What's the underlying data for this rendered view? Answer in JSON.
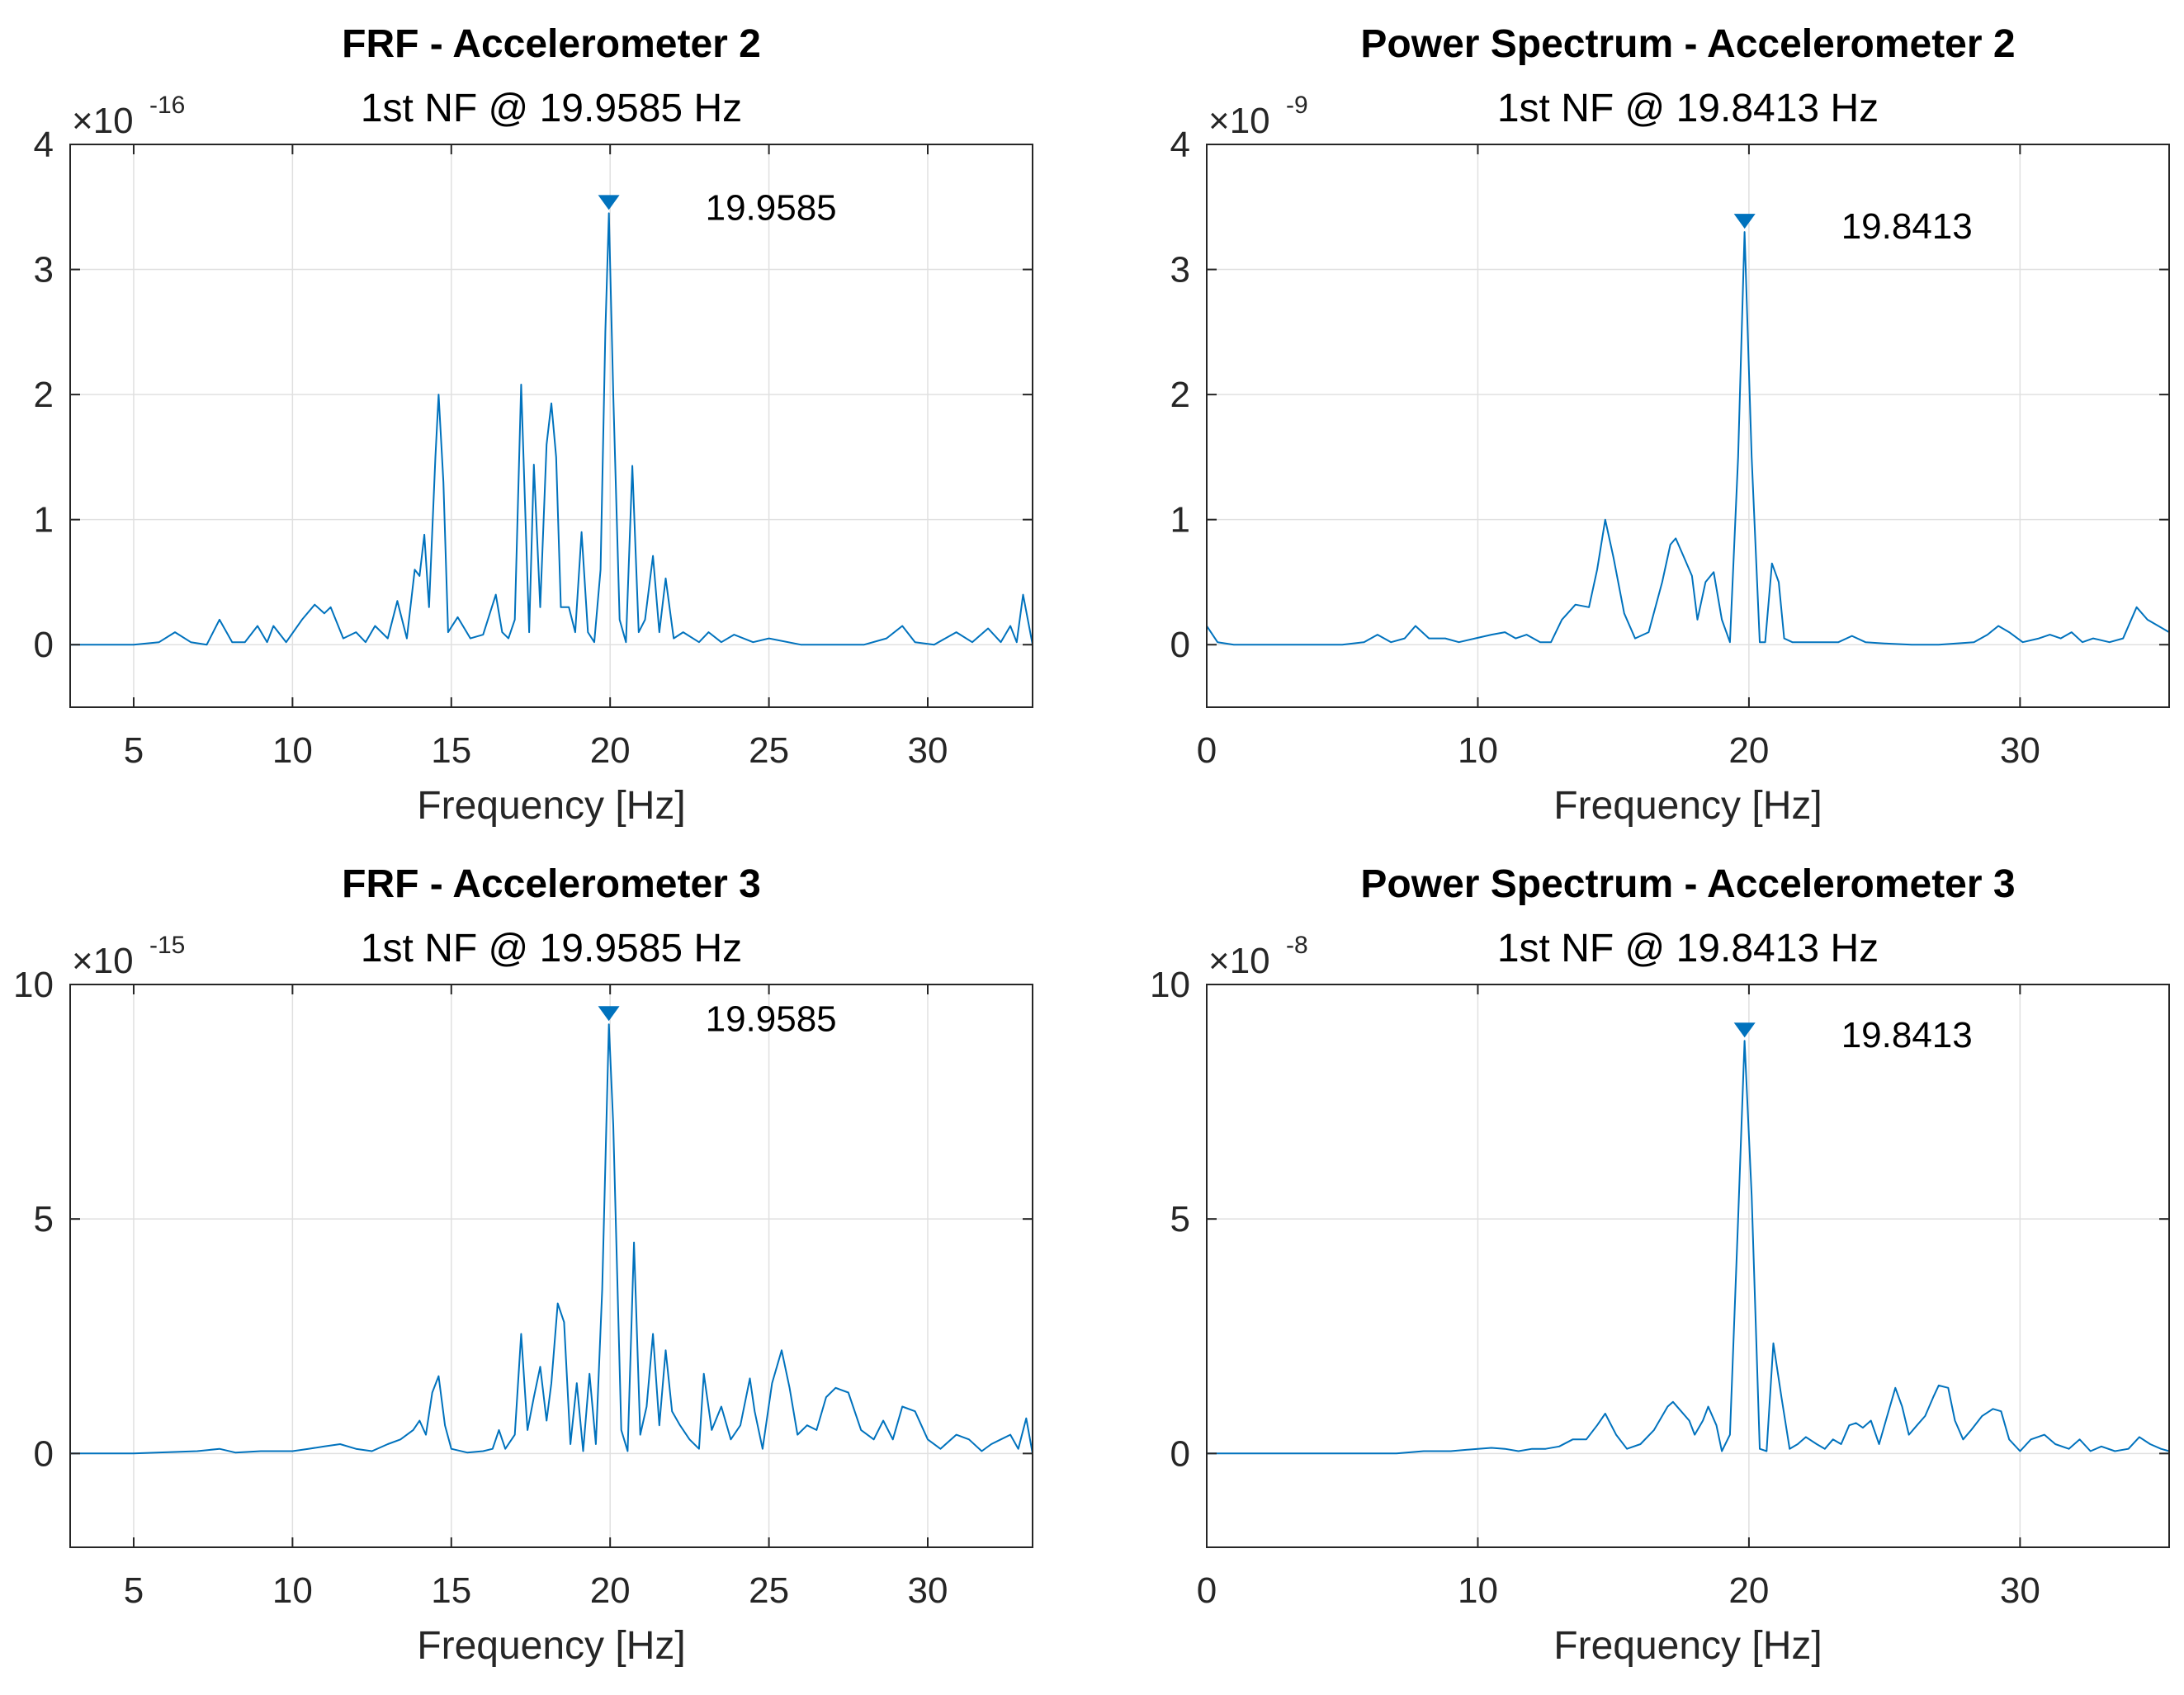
{
  "figure": {
    "background": "#ffffff",
    "line_color": "#0072bd",
    "grid_color": "#e0e0e0",
    "axis_color": "#262626"
  },
  "chart_data": [
    {
      "type": "line",
      "title": "FRF - Accelerometer 2",
      "subtitle": "1st NF @ 19.9585 Hz",
      "xlabel": "Frequency [Hz]",
      "ylabel": "",
      "xlim": [
        3,
        33.3
      ],
      "ylim": [
        -0.5,
        4
      ],
      "exponent_label": "×10",
      "exponent": "-16",
      "xticks": [
        5,
        10,
        15,
        20,
        25,
        30
      ],
      "yticks": [
        0,
        1,
        2,
        3,
        4
      ],
      "grid": true,
      "peak": {
        "x": 19.9585,
        "y": 3.45,
        "label": "19.9585"
      },
      "series": [
        {
          "name": "FRF",
          "x": [
            3,
            4,
            5,
            5.8,
            6.3,
            6.8,
            7.3,
            7.7,
            8.1,
            8.5,
            8.9,
            9.2,
            9.4,
            9.8,
            10.3,
            10.7,
            11.0,
            11.2,
            11.6,
            12.0,
            12.3,
            12.6,
            13.0,
            13.3,
            13.6,
            13.85,
            14.0,
            14.15,
            14.3,
            14.5,
            14.6,
            14.75,
            14.9,
            15.2,
            15.6,
            16.0,
            16.4,
            16.6,
            16.8,
            17.0,
            17.2,
            17.45,
            17.6,
            17.8,
            18.0,
            18.15,
            18.3,
            18.45,
            18.7,
            18.9,
            19.1,
            19.3,
            19.5,
            19.7,
            19.85,
            19.96,
            20.1,
            20.3,
            20.5,
            20.7,
            20.9,
            21.1,
            21.35,
            21.55,
            21.75,
            22.0,
            22.3,
            22.8,
            23.1,
            23.5,
            23.9,
            24.5,
            25.0,
            26.0,
            27.0,
            28.0,
            28.7,
            29.2,
            29.6,
            30.2,
            30.9,
            31.4,
            31.9,
            32.3,
            32.6,
            32.8,
            33.0,
            33.3
          ],
          "values": [
            0.0,
            0.0,
            0.0,
            0.02,
            0.1,
            0.02,
            0.0,
            0.2,
            0.02,
            0.02,
            0.15,
            0.02,
            0.15,
            0.02,
            0.2,
            0.32,
            0.25,
            0.3,
            0.05,
            0.1,
            0.02,
            0.15,
            0.05,
            0.35,
            0.05,
            0.6,
            0.55,
            0.88,
            0.3,
            1.5,
            2.0,
            1.3,
            0.1,
            0.22,
            0.05,
            0.08,
            0.4,
            0.1,
            0.05,
            0.2,
            2.08,
            0.1,
            1.44,
            0.3,
            1.6,
            1.93,
            1.5,
            0.3,
            0.3,
            0.1,
            0.9,
            0.1,
            0.02,
            0.6,
            2.5,
            3.45,
            2.0,
            0.2,
            0.02,
            1.43,
            0.1,
            0.2,
            0.71,
            0.1,
            0.53,
            0.05,
            0.1,
            0.02,
            0.1,
            0.02,
            0.08,
            0.02,
            0.05,
            0.0,
            0.0,
            0.0,
            0.05,
            0.15,
            0.02,
            0.0,
            0.1,
            0.02,
            0.13,
            0.02,
            0.15,
            0.02,
            0.4,
            0.0
          ]
        }
      ]
    },
    {
      "type": "line",
      "title": "Power Spectrum - Accelerometer 2",
      "subtitle": "1st NF @ 19.8413 Hz",
      "xlabel": "Frequency [Hz]",
      "ylabel": "",
      "xlim": [
        0,
        35.5
      ],
      "ylim": [
        -0.5,
        4
      ],
      "exponent_label": "×10",
      "exponent": "-9",
      "xticks": [
        0,
        10,
        20,
        30
      ],
      "yticks": [
        0,
        1,
        2,
        3,
        4
      ],
      "grid": true,
      "peak": {
        "x": 19.8413,
        "y": 3.3,
        "label": "19.8413"
      },
      "series": [
        {
          "name": "Power Spectrum",
          "x": [
            0,
            0.4,
            1,
            2,
            3,
            4,
            5,
            5.8,
            6.3,
            6.8,
            7.3,
            7.7,
            8.2,
            8.8,
            9.3,
            9.9,
            10.5,
            11.0,
            11.4,
            11.8,
            12.3,
            12.7,
            13.1,
            13.6,
            14.1,
            14.4,
            14.7,
            15.0,
            15.4,
            15.8,
            16.3,
            16.8,
            17.1,
            17.3,
            17.6,
            17.9,
            18.1,
            18.4,
            18.7,
            19.0,
            19.3,
            19.6,
            19.84,
            20.1,
            20.4,
            20.6,
            20.85,
            21.1,
            21.3,
            21.6,
            22.0,
            22.6,
            23.3,
            23.8,
            24.3,
            25.0,
            26.0,
            27.0,
            28.3,
            28.8,
            29.2,
            29.6,
            30.1,
            30.7,
            31.1,
            31.5,
            31.9,
            32.3,
            32.7,
            33.3,
            33.8,
            34.3,
            34.7,
            35.5
          ],
          "values": [
            0.15,
            0.02,
            0.0,
            0.0,
            0.0,
            0.0,
            0.0,
            0.02,
            0.08,
            0.02,
            0.05,
            0.15,
            0.05,
            0.05,
            0.02,
            0.05,
            0.08,
            0.1,
            0.05,
            0.08,
            0.02,
            0.02,
            0.2,
            0.32,
            0.3,
            0.6,
            1.0,
            0.7,
            0.25,
            0.05,
            0.1,
            0.5,
            0.8,
            0.85,
            0.7,
            0.55,
            0.2,
            0.5,
            0.58,
            0.2,
            0.02,
            1.5,
            3.3,
            1.5,
            0.02,
            0.02,
            0.65,
            0.5,
            0.05,
            0.02,
            0.02,
            0.02,
            0.02,
            0.07,
            0.02,
            0.01,
            0.0,
            0.0,
            0.02,
            0.08,
            0.15,
            0.1,
            0.02,
            0.05,
            0.08,
            0.05,
            0.1,
            0.02,
            0.05,
            0.02,
            0.05,
            0.3,
            0.2,
            0.1
          ]
        }
      ]
    },
    {
      "type": "line",
      "title": "FRF - Accelerometer 3",
      "subtitle": "1st NF @ 19.9585 Hz",
      "xlabel": "Frequency [Hz]",
      "ylabel": "",
      "xlim": [
        3,
        33.3
      ],
      "ylim": [
        -2,
        10
      ],
      "exponent_label": "×10",
      "exponent": "-15",
      "xticks": [
        5,
        10,
        15,
        20,
        25,
        30
      ],
      "yticks": [
        0,
        5,
        10
      ],
      "grid": true,
      "peak": {
        "x": 19.9585,
        "y": 9.15,
        "label": "19.9585"
      },
      "series": [
        {
          "name": "FRF",
          "x": [
            3,
            5,
            7,
            7.7,
            8.2,
            9.0,
            9.5,
            10.0,
            10.5,
            11.0,
            11.5,
            12.0,
            12.5,
            13.0,
            13.4,
            13.8,
            14.0,
            14.2,
            14.4,
            14.6,
            14.8,
            15.0,
            15.5,
            16.0,
            16.3,
            16.5,
            16.7,
            17.0,
            17.2,
            17.4,
            17.6,
            17.8,
            18.0,
            18.15,
            18.35,
            18.55,
            18.75,
            18.95,
            19.15,
            19.35,
            19.55,
            19.75,
            19.96,
            20.1,
            20.35,
            20.55,
            20.75,
            20.95,
            21.15,
            21.35,
            21.55,
            21.75,
            21.95,
            22.2,
            22.5,
            22.8,
            22.95,
            23.2,
            23.5,
            23.8,
            24.1,
            24.4,
            24.55,
            24.8,
            25.1,
            25.4,
            25.65,
            25.9,
            26.2,
            26.5,
            26.8,
            27.1,
            27.5,
            27.9,
            28.3,
            28.6,
            28.9,
            29.2,
            29.6,
            30.0,
            30.4,
            30.9,
            31.3,
            31.7,
            32.0,
            32.3,
            32.6,
            32.85,
            33.1,
            33.3
          ],
          "values": [
            0.0,
            0.0,
            0.05,
            0.1,
            0.02,
            0.05,
            0.05,
            0.05,
            0.1,
            0.15,
            0.2,
            0.1,
            0.05,
            0.2,
            0.3,
            0.5,
            0.7,
            0.4,
            1.3,
            1.65,
            0.6,
            0.1,
            0.02,
            0.05,
            0.1,
            0.5,
            0.1,
            0.4,
            2.55,
            0.5,
            1.2,
            1.85,
            0.7,
            1.5,
            3.2,
            2.8,
            0.2,
            1.5,
            0.05,
            1.7,
            0.2,
            3.5,
            9.15,
            7.0,
            0.5,
            0.05,
            4.5,
            0.4,
            1.0,
            2.55,
            0.6,
            2.2,
            0.9,
            0.6,
            0.3,
            0.1,
            1.7,
            0.5,
            1.0,
            0.3,
            0.6,
            1.6,
            0.9,
            0.1,
            1.5,
            2.2,
            1.4,
            0.4,
            0.6,
            0.5,
            1.2,
            1.4,
            1.3,
            0.5,
            0.3,
            0.7,
            0.3,
            1.0,
            0.9,
            0.3,
            0.1,
            0.4,
            0.3,
            0.05,
            0.2,
            0.3,
            0.4,
            0.1,
            0.75,
            0.0
          ]
        }
      ]
    },
    {
      "type": "line",
      "title": "Power Spectrum - Accelerometer 3",
      "subtitle": "1st NF @ 19.8413 Hz",
      "xlabel": "Frequency [Hz]",
      "ylabel": "",
      "xlim": [
        0,
        35.5
      ],
      "ylim": [
        -2,
        10
      ],
      "exponent_label": "×10",
      "exponent": "-8",
      "xticks": [
        0,
        10,
        20,
        30
      ],
      "yticks": [
        0,
        5,
        10
      ],
      "grid": true,
      "peak": {
        "x": 19.8413,
        "y": 8.8,
        "label": "19.8413"
      },
      "series": [
        {
          "name": "Power Spectrum",
          "x": [
            0,
            3,
            5,
            7,
            8,
            9,
            10,
            10.5,
            11,
            11.5,
            12,
            12.5,
            13,
            13.5,
            14.0,
            14.4,
            14.7,
            15.1,
            15.5,
            16.0,
            16.5,
            17.0,
            17.2,
            17.5,
            17.8,
            18.0,
            18.3,
            18.5,
            18.8,
            19.0,
            19.3,
            19.6,
            19.84,
            20.1,
            20.4,
            20.65,
            20.9,
            21.2,
            21.5,
            21.8,
            22.1,
            22.5,
            22.8,
            23.1,
            23.4,
            23.7,
            23.95,
            24.2,
            24.5,
            24.8,
            25.1,
            25.4,
            25.65,
            25.9,
            26.2,
            26.5,
            26.8,
            27.0,
            27.35,
            27.6,
            27.9,
            28.2,
            28.6,
            29.0,
            29.3,
            29.6,
            30.0,
            30.4,
            30.9,
            31.3,
            31.8,
            32.2,
            32.6,
            33.0,
            33.5,
            34.0,
            34.4,
            34.8,
            35.2,
            35.5
          ],
          "values": [
            0.0,
            0.0,
            0.0,
            0.0,
            0.05,
            0.05,
            0.1,
            0.12,
            0.1,
            0.05,
            0.1,
            0.1,
            0.15,
            0.3,
            0.3,
            0.6,
            0.85,
            0.4,
            0.1,
            0.2,
            0.5,
            1.0,
            1.1,
            0.9,
            0.7,
            0.4,
            0.7,
            1.0,
            0.6,
            0.05,
            0.4,
            5.0,
            8.8,
            5.5,
            0.1,
            0.05,
            2.35,
            1.2,
            0.1,
            0.2,
            0.35,
            0.2,
            0.1,
            0.3,
            0.2,
            0.6,
            0.65,
            0.55,
            0.7,
            0.2,
            0.8,
            1.4,
            1.0,
            0.4,
            0.6,
            0.8,
            1.2,
            1.45,
            1.4,
            0.7,
            0.3,
            0.5,
            0.8,
            0.95,
            0.9,
            0.3,
            0.05,
            0.3,
            0.4,
            0.2,
            0.1,
            0.3,
            0.05,
            0.15,
            0.05,
            0.1,
            0.35,
            0.2,
            0.1,
            0.05
          ]
        }
      ]
    }
  ]
}
